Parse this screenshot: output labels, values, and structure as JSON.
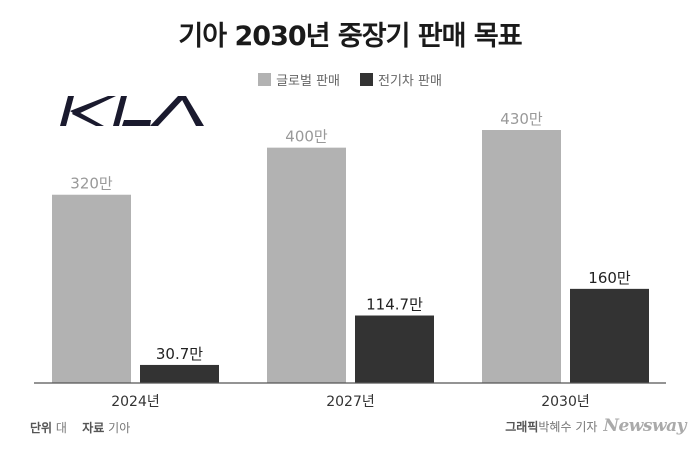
{
  "title": "기아 2030년 중장기 판매 목표",
  "legend": [
    {
      "label": "글로벌 판매",
      "color": "#b2b2b2"
    },
    {
      "label": "전기차 판매",
      "color": "#333333"
    }
  ],
  "logo_icon": "kia-logo",
  "chart_data": {
    "type": "bar",
    "categories": [
      "2024년",
      "2027년",
      "2030년"
    ],
    "series": [
      {
        "name": "글로벌 판매",
        "values": [
          320,
          400,
          430
        ],
        "labels": [
          "320만",
          "400만",
          "430만"
        ],
        "color": "#b2b2b2"
      },
      {
        "name": "전기차 판매",
        "values": [
          30.7,
          114.7,
          160
        ],
        "labels": [
          "30.7만",
          "114.7만",
          "160만"
        ],
        "color": "#333333"
      }
    ],
    "ylim": [
      0,
      430
    ],
    "grid": false,
    "legend_position": "top-center"
  },
  "footer": {
    "unit_key": "단위",
    "unit_value": "대",
    "source_key": "자료",
    "source_value": "기아",
    "graphic_key": "그래픽",
    "graphic_value": "박혜수 기자",
    "brand": "Newsway"
  }
}
